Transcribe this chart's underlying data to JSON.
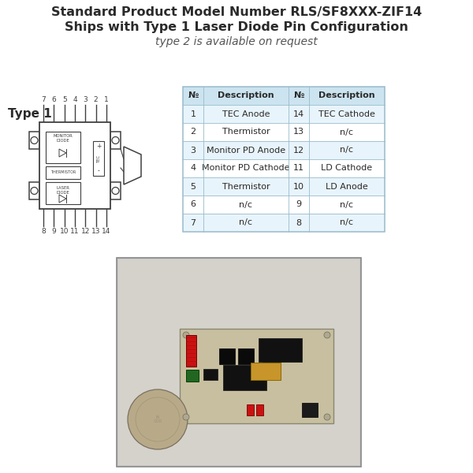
{
  "title_line1": "Standard Product Model Number RLS/SF8XXX-ZIF14",
  "title_line2": "Ships with Type 1 Laser Diode Pin Configuration",
  "subtitle": "type 2 is available on request",
  "type_label": "Type 1",
  "bg_color": "#ffffff",
  "table_header_color": "#cce4f0",
  "table_alt_color": "#e8f4fb",
  "table_row_color": "#ffffff",
  "table_border_color": "#99bbcc",
  "table_data": [
    [
      "1",
      "TEC Anode",
      "14",
      "TEC Cathode"
    ],
    [
      "2",
      "Thermistor",
      "13",
      "n/c"
    ],
    [
      "3",
      "Monitor PD Anode",
      "12",
      "n/c"
    ],
    [
      "4",
      "Monitor PD Cathode",
      "11",
      "LD Cathode"
    ],
    [
      "5",
      "Thermistor",
      "10",
      "LD Anode"
    ],
    [
      "6",
      "n/c",
      "9",
      "n/c"
    ],
    [
      "7",
      "n/c",
      "8",
      "n/c"
    ]
  ],
  "top_pins": [
    "7",
    "6",
    "5",
    "4",
    "3",
    "2",
    "1"
  ],
  "bottom_pins": [
    "8",
    "9",
    "10",
    "11",
    "12",
    "13",
    "14"
  ],
  "dark_text": "#2a2a2a",
  "medium_text": "#555555",
  "circuit_color": "#404040",
  "title_fontsize": 11.5,
  "subtitle_fontsize": 10,
  "table_fontsize": 8,
  "pin_fontsize": 6.5,
  "label_fontsize": 6,
  "type1_fontsize": 11,
  "photo_bg": "#c8c8c8",
  "photo_inner_bg": "#d8d5ce",
  "pcb_color": "#c8bfa0",
  "photo_border": "#888888"
}
